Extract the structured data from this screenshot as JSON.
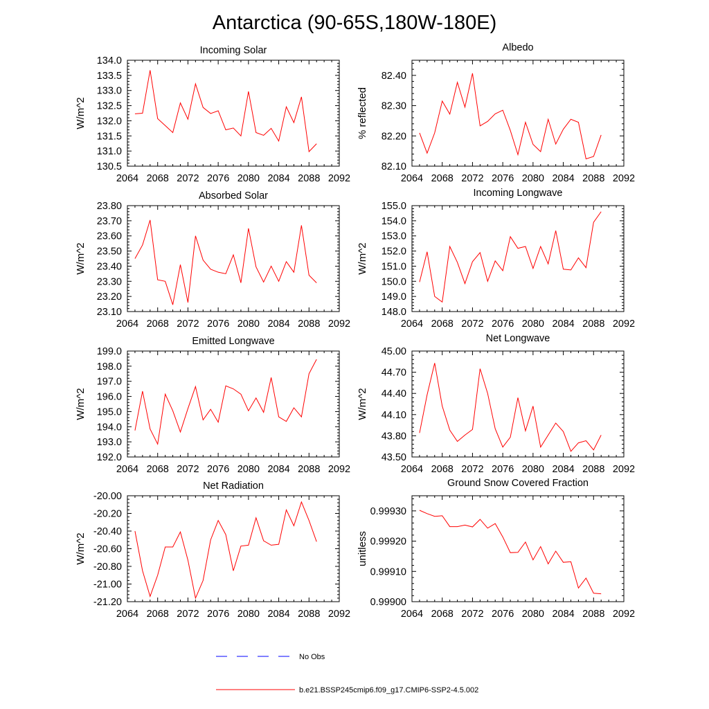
{
  "title": "Antarctica (90-65S,180W-180E)",
  "colors": {
    "model": "#ff0000",
    "obs": "#0000ff",
    "axis": "#000000"
  },
  "chart_data": [
    {
      "type": "line",
      "title": "Incoming Solar",
      "ylabel": "W/m^2",
      "xlim": [
        2064,
        2092
      ],
      "ylim": [
        130.5,
        134.0
      ],
      "xticks": [
        "2064",
        "2068",
        "2072",
        "2076",
        "2080",
        "2084",
        "2088",
        "2092"
      ],
      "yticks": [
        "130.5",
        "131.0",
        "131.5",
        "132.0",
        "132.5",
        "133.0",
        "133.5",
        "134.0"
      ],
      "x": [
        2065,
        2066,
        2067,
        2068,
        2069,
        2070,
        2071,
        2072,
        2073,
        2074,
        2075,
        2076,
        2077,
        2078,
        2079,
        2080,
        2081,
        2082,
        2083,
        2084,
        2085,
        2086,
        2087,
        2088,
        2089
      ],
      "series": [
        {
          "name": "b.e21.BSSP245cmip6.f09_g17.CMIP6-SSP2-4.5.002",
          "values": [
            132.23,
            132.25,
            133.67,
            132.07,
            131.84,
            131.61,
            132.59,
            132.05,
            133.22,
            132.44,
            132.24,
            132.33,
            131.7,
            131.76,
            131.5,
            132.97,
            131.61,
            131.52,
            131.75,
            131.33,
            132.46,
            131.94,
            132.79,
            130.98,
            131.24
          ]
        }
      ]
    },
    {
      "type": "line",
      "title": "Albedo",
      "ylabel": "% reflected",
      "xlim": [
        2064,
        2092
      ],
      "ylim": [
        82.1,
        82.45
      ],
      "xticks": [
        "2064",
        "2068",
        "2072",
        "2076",
        "2080",
        "2084",
        "2088",
        "2092"
      ],
      "yticks": [
        "82.10",
        "82.20",
        "82.30",
        "82.40"
      ],
      "x": [
        2065,
        2066,
        2067,
        2068,
        2069,
        2070,
        2071,
        2072,
        2073,
        2074,
        2075,
        2076,
        2077,
        2078,
        2079,
        2080,
        2081,
        2082,
        2083,
        2084,
        2085,
        2086,
        2087,
        2088,
        2089
      ],
      "series": [
        {
          "name": "b.e21.BSSP245cmip6.f09_g17.CMIP6-SSP2-4.5.002",
          "values": [
            82.21,
            82.143,
            82.21,
            82.315,
            82.272,
            82.377,
            82.295,
            82.407,
            82.233,
            82.248,
            82.273,
            82.285,
            82.218,
            82.138,
            82.245,
            82.172,
            82.148,
            82.255,
            82.173,
            82.222,
            82.255,
            82.245,
            82.124,
            82.132,
            82.203
          ]
        }
      ]
    },
    {
      "type": "line",
      "title": "Absorbed Solar",
      "ylabel": "W/m^2",
      "xlim": [
        2064,
        2092
      ],
      "ylim": [
        23.1,
        23.8
      ],
      "xticks": [
        "2064",
        "2068",
        "2072",
        "2076",
        "2080",
        "2084",
        "2088",
        "2092"
      ],
      "yticks": [
        "23.10",
        "23.20",
        "23.30",
        "23.40",
        "23.50",
        "23.60",
        "23.70",
        "23.80"
      ],
      "x": [
        2065,
        2066,
        2067,
        2068,
        2069,
        2070,
        2071,
        2072,
        2073,
        2074,
        2075,
        2076,
        2077,
        2078,
        2079,
        2080,
        2081,
        2082,
        2083,
        2084,
        2085,
        2086,
        2087,
        2088,
        2089
      ],
      "series": [
        {
          "name": "b.e21.BSSP245cmip6.f09_g17.CMIP6-SSP2-4.5.002",
          "values": [
            23.45,
            23.54,
            23.705,
            23.31,
            23.3,
            23.145,
            23.41,
            23.16,
            23.6,
            23.44,
            23.38,
            23.36,
            23.35,
            23.475,
            23.29,
            23.65,
            23.395,
            23.295,
            23.4,
            23.3,
            23.43,
            23.36,
            23.67,
            23.34,
            23.29
          ]
        }
      ]
    },
    {
      "type": "line",
      "title": "Incoming Longwave",
      "ylabel": "W/m^2",
      "xlim": [
        2064,
        2092
      ],
      "ylim": [
        148.0,
        155.0
      ],
      "xticks": [
        "2064",
        "2068",
        "2072",
        "2076",
        "2080",
        "2084",
        "2088",
        "2092"
      ],
      "yticks": [
        "148.0",
        "149.0",
        "150.0",
        "151.0",
        "152.0",
        "153.0",
        "154.0",
        "155.0"
      ],
      "x": [
        2065,
        2066,
        2067,
        2068,
        2069,
        2070,
        2071,
        2072,
        2073,
        2074,
        2075,
        2076,
        2077,
        2078,
        2079,
        2080,
        2081,
        2082,
        2083,
        2084,
        2085,
        2086,
        2087,
        2088,
        2089
      ],
      "series": [
        {
          "name": "b.e21.BSSP245cmip6.f09_g17.CMIP6-SSP2-4.5.002",
          "values": [
            149.95,
            151.95,
            149.0,
            148.63,
            152.3,
            151.25,
            149.85,
            151.3,
            151.9,
            150.0,
            151.35,
            150.7,
            152.95,
            152.18,
            152.3,
            150.85,
            152.3,
            151.15,
            153.35,
            150.8,
            150.75,
            151.55,
            150.9,
            153.9,
            154.6
          ]
        }
      ]
    },
    {
      "type": "line",
      "title": "Emitted Longwave",
      "ylabel": "W/m^2",
      "xlim": [
        2064,
        2092
      ],
      "ylim": [
        192.0,
        199.0
      ],
      "xticks": [
        "2064",
        "2068",
        "2072",
        "2076",
        "2080",
        "2084",
        "2088",
        "2092"
      ],
      "yticks": [
        "192.0",
        "193.0",
        "194.0",
        "195.0",
        "196.0",
        "197.0",
        "198.0",
        "199.0"
      ],
      "x": [
        2065,
        2066,
        2067,
        2068,
        2069,
        2070,
        2071,
        2072,
        2073,
        2074,
        2075,
        2076,
        2077,
        2078,
        2079,
        2080,
        2081,
        2082,
        2083,
        2084,
        2085,
        2086,
        2087,
        2088,
        2089
      ],
      "series": [
        {
          "name": "b.e21.BSSP245cmip6.f09_g17.CMIP6-SSP2-4.5.002",
          "values": [
            193.75,
            196.35,
            193.85,
            192.85,
            196.15,
            195.05,
            193.65,
            195.2,
            196.65,
            194.45,
            195.15,
            194.3,
            196.7,
            196.5,
            196.15,
            195.05,
            195.9,
            194.95,
            197.25,
            194.65,
            194.35,
            195.25,
            194.65,
            197.5,
            198.45
          ]
        }
      ]
    },
    {
      "type": "line",
      "title": "Net Longwave",
      "ylabel": "W/m^2",
      "xlim": [
        2064,
        2092
      ],
      "ylim": [
        43.5,
        45.0
      ],
      "xticks": [
        "2064",
        "2068",
        "2072",
        "2076",
        "2080",
        "2084",
        "2088",
        "2092"
      ],
      "yticks": [
        "43.50",
        "43.80",
        "44.10",
        "44.40",
        "44.70",
        "45.00"
      ],
      "x": [
        2065,
        2066,
        2067,
        2068,
        2069,
        2070,
        2071,
        2072,
        2073,
        2074,
        2075,
        2076,
        2077,
        2078,
        2079,
        2080,
        2081,
        2082,
        2083,
        2084,
        2085,
        2086,
        2087,
        2088,
        2089
      ],
      "series": [
        {
          "name": "b.e21.BSSP245cmip6.f09_g17.CMIP6-SSP2-4.5.002",
          "values": [
            43.84,
            44.38,
            44.83,
            44.22,
            43.88,
            43.72,
            43.81,
            43.89,
            44.75,
            44.4,
            43.9,
            43.64,
            43.78,
            44.34,
            43.87,
            44.22,
            43.64,
            43.81,
            43.98,
            43.86,
            43.58,
            43.7,
            43.73,
            43.6,
            43.81
          ]
        }
      ]
    },
    {
      "type": "line",
      "title": "Net Radiation",
      "ylabel": "W/m^2",
      "xlim": [
        2064,
        2092
      ],
      "ylim": [
        -21.2,
        -20.0
      ],
      "xticks": [
        "2064",
        "2068",
        "2072",
        "2076",
        "2080",
        "2084",
        "2088",
        "2092"
      ],
      "yticks": [
        "-21.20",
        "-21.00",
        "-20.80",
        "-20.60",
        "-20.40",
        "-20.20",
        "-20.00"
      ],
      "x": [
        2065,
        2066,
        2067,
        2068,
        2069,
        2070,
        2071,
        2072,
        2073,
        2074,
        2075,
        2076,
        2077,
        2078,
        2079,
        2080,
        2081,
        2082,
        2083,
        2084,
        2085,
        2086,
        2087,
        2088,
        2089
      ],
      "series": [
        {
          "name": "b.e21.BSSP245cmip6.f09_g17.CMIP6-SSP2-4.5.002",
          "values": [
            -20.4,
            -20.85,
            -21.14,
            -20.9,
            -20.58,
            -20.58,
            -20.41,
            -20.73,
            -21.16,
            -20.96,
            -20.5,
            -20.28,
            -20.44,
            -20.85,
            -20.57,
            -20.56,
            -20.25,
            -20.51,
            -20.56,
            -20.55,
            -20.16,
            -20.34,
            -20.07,
            -20.28,
            -20.52
          ]
        }
      ]
    },
    {
      "type": "line",
      "title": "Ground Snow Covered Fraction",
      "ylabel": "unitless",
      "xlim": [
        2064,
        2092
      ],
      "ylim": [
        0.999,
        0.99935
      ],
      "xticks": [
        "2064",
        "2068",
        "2072",
        "2076",
        "2080",
        "2084",
        "2088",
        "2092"
      ],
      "yticks": [
        "0.99900",
        "0.99910",
        "0.99920",
        "0.99930"
      ],
      "x": [
        2065,
        2066,
        2067,
        2068,
        2069,
        2070,
        2071,
        2072,
        2073,
        2074,
        2075,
        2076,
        2077,
        2078,
        2079,
        2080,
        2081,
        2082,
        2083,
        2084,
        2085,
        2086,
        2087,
        2088,
        2089
      ],
      "series": [
        {
          "name": "b.e21.BSSP245cmip6.f09_g17.CMIP6-SSP2-4.5.002",
          "values": [
            0.999302,
            0.999291,
            0.999282,
            0.999284,
            0.999248,
            0.999248,
            0.999253,
            0.999247,
            0.999272,
            0.999243,
            0.999258,
            0.999214,
            0.999162,
            0.999163,
            0.999197,
            0.999138,
            0.999182,
            0.999125,
            0.999167,
            0.99913,
            0.999132,
            0.999045,
            0.999078,
            0.999028,
            0.999026
          ]
        }
      ]
    }
  ],
  "legend": {
    "items": [
      {
        "label": "No Obs",
        "style": "dashed",
        "color": "#0000ff"
      },
      {
        "label": "b.e21.BSSP245cmip6.f09_g17.CMIP6-SSP2-4.5.002",
        "style": "solid",
        "color": "#ff0000"
      }
    ]
  }
}
